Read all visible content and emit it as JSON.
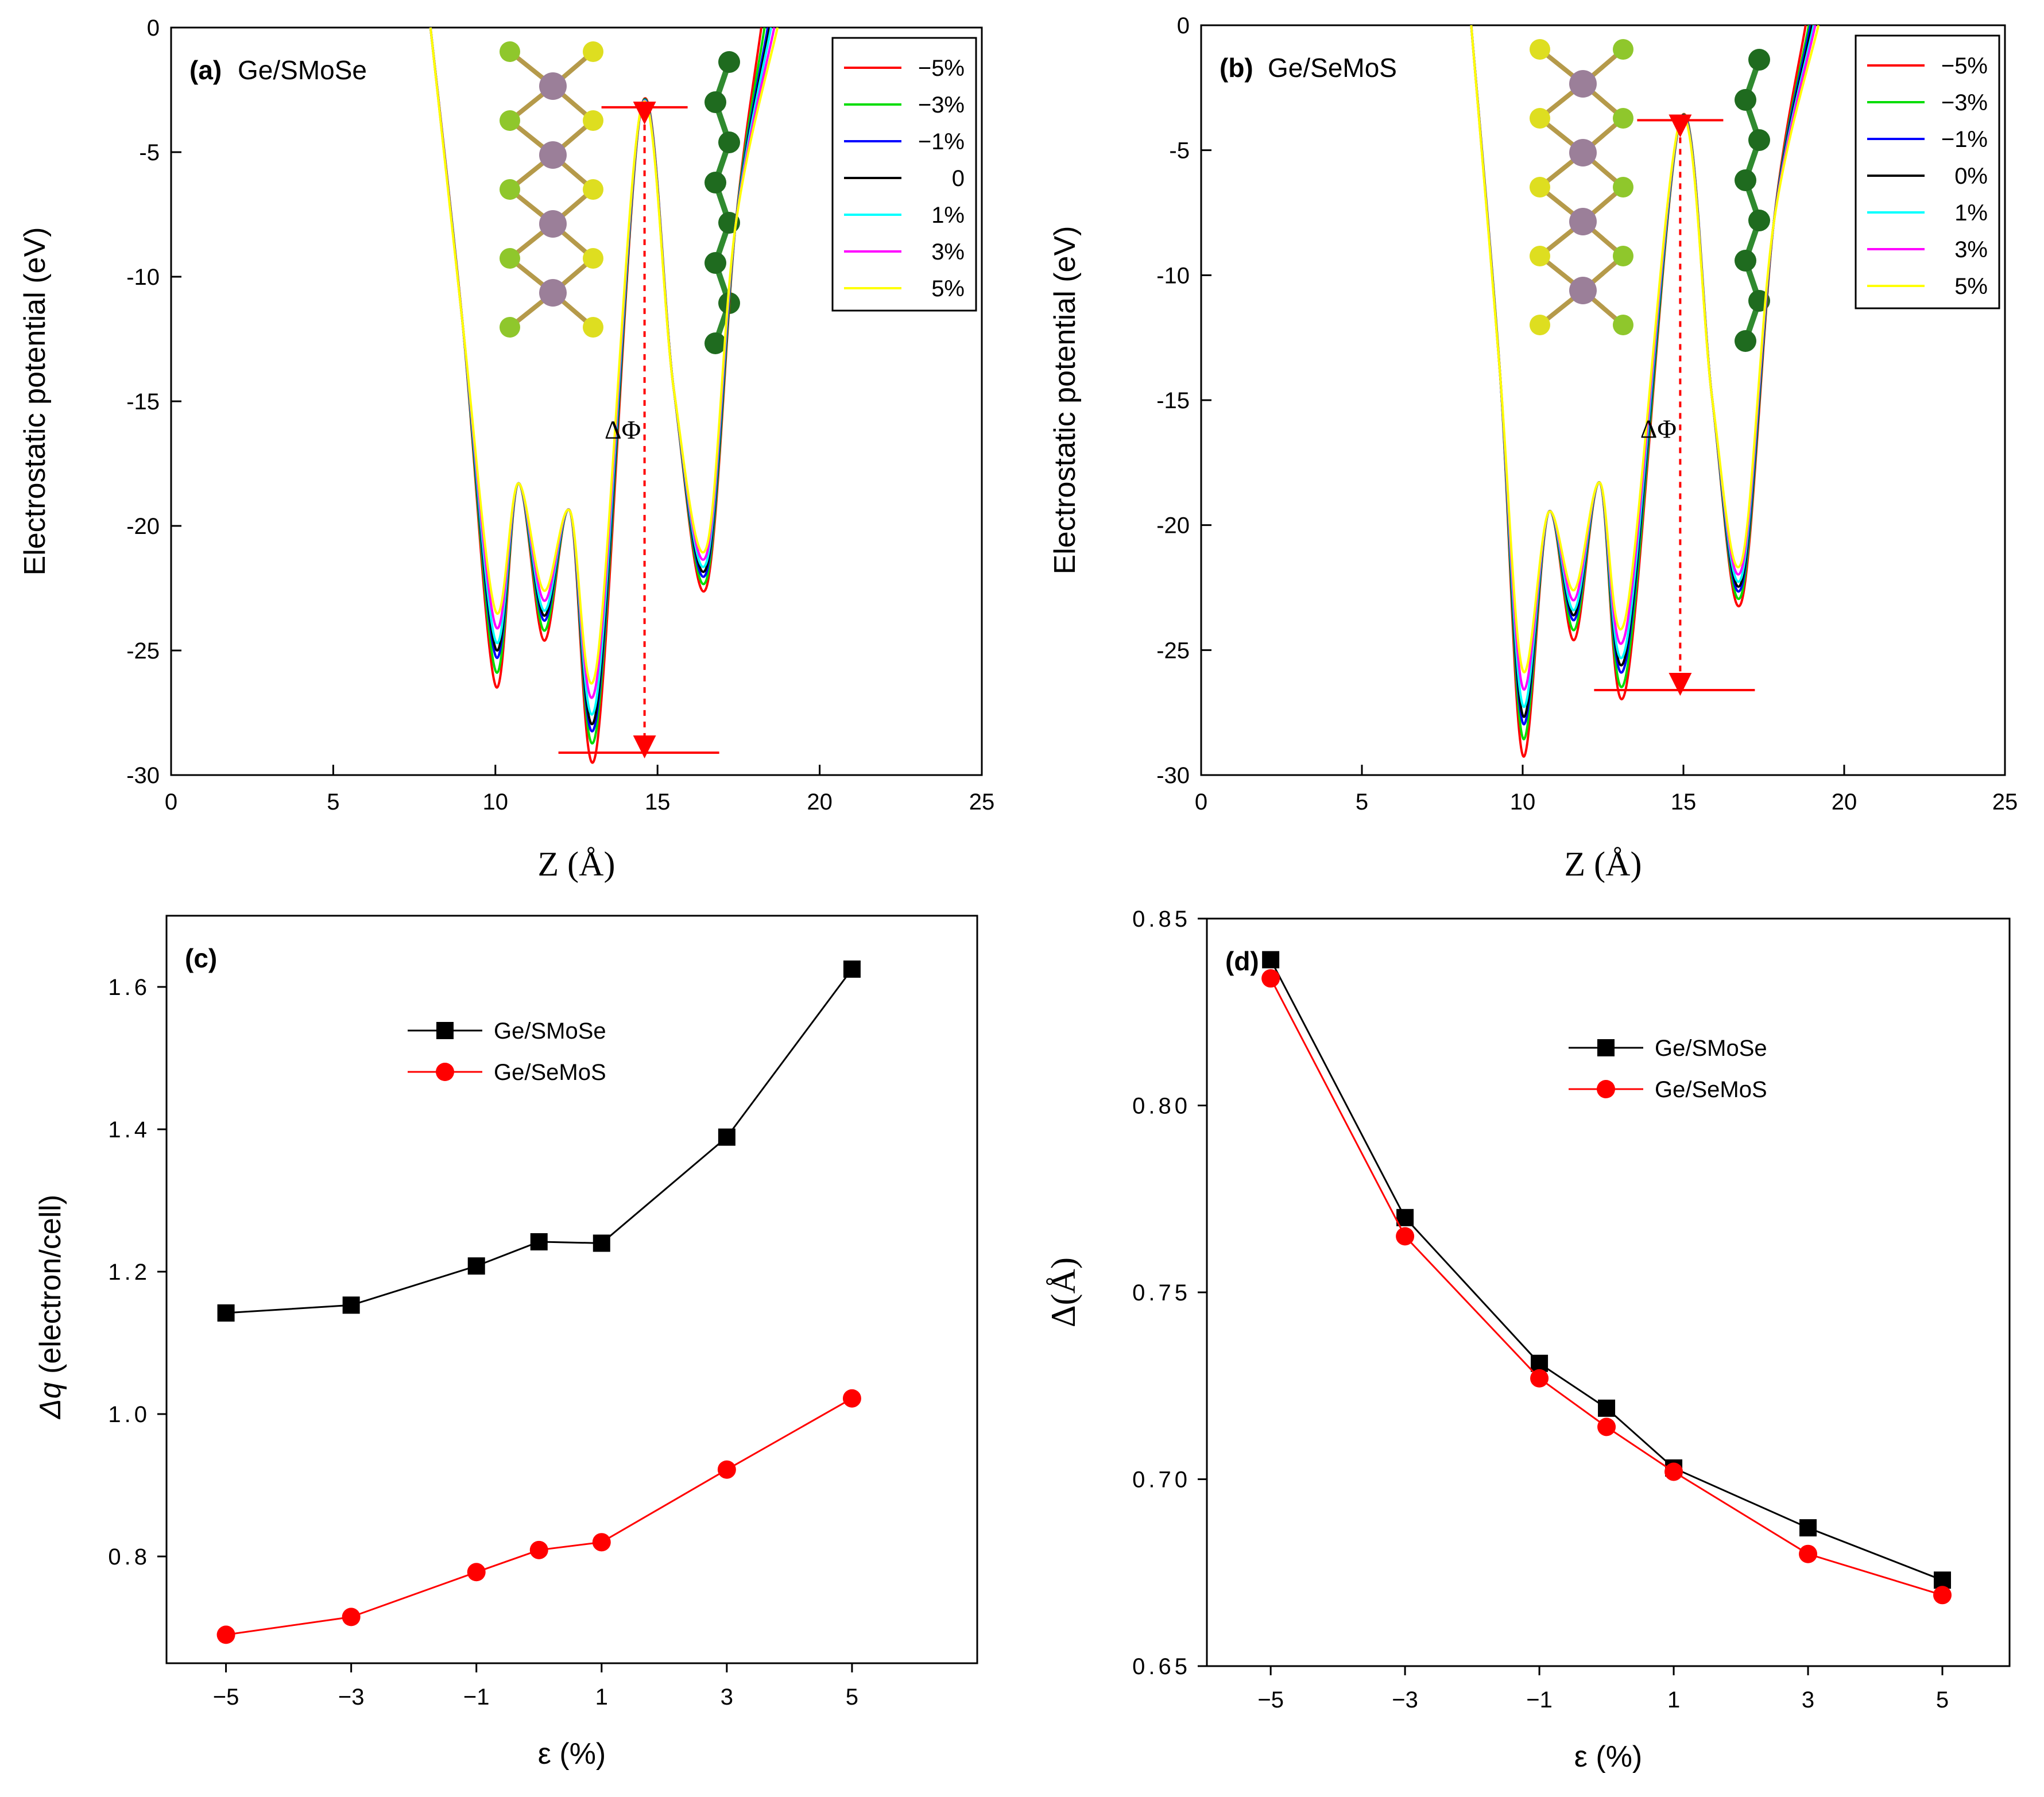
{
  "chart_data": [
    {
      "type": "line",
      "panel_label": "(a)",
      "title": "Ge/SMoSe",
      "xlabel": "Z (Å)",
      "ylabel": "Electrostatic potential (eV)",
      "xlim": [
        0,
        25
      ],
      "ylim": [
        -30,
        0
      ],
      "xticks": [
        "0",
        "5",
        "10",
        "15",
        "20",
        "25"
      ],
      "yticks": [
        "0",
        "-5",
        "-10",
        "-15",
        "-20",
        "-25",
        "-30"
      ],
      "legend_position": "top-right",
      "series": [
        {
          "name": "−5%",
          "color": "#ff0000",
          "x": [
            8.0,
            9.0,
            10.0,
            10.7,
            11.5,
            12.3,
            13.1,
            14.5,
            15.5,
            16.5,
            17.4,
            18.2
          ],
          "y": [
            0,
            -12.0,
            -26.4,
            -18.3,
            -24.6,
            -19.4,
            -29.1,
            -3.2,
            -14.5,
            -22.5,
            -8.0,
            0
          ]
        },
        {
          "name": "−3%",
          "color": "#00dd00",
          "x": [
            8.0,
            9.0,
            10.0,
            10.7,
            11.5,
            12.3,
            13.1,
            14.5,
            15.5,
            16.5,
            17.4,
            18.3
          ],
          "y": [
            0,
            -12.0,
            -25.8,
            -18.3,
            -24.2,
            -19.4,
            -28.3,
            -3.2,
            -14.5,
            -22.2,
            -8.0,
            0
          ]
        },
        {
          "name": "−1%",
          "color": "#0000ff",
          "x": [
            8.0,
            9.0,
            10.0,
            10.7,
            11.5,
            12.3,
            13.1,
            14.5,
            15.5,
            16.5,
            17.4,
            18.4
          ],
          "y": [
            0,
            -12.0,
            -25.2,
            -18.3,
            -23.8,
            -19.4,
            -27.8,
            -3.2,
            -14.5,
            -21.9,
            -8.0,
            0
          ]
        },
        {
          "name": "0",
          "color": "#000000",
          "x": [
            8.0,
            9.0,
            10.0,
            10.7,
            11.5,
            12.3,
            13.1,
            14.5,
            15.5,
            16.5,
            17.4,
            18.45
          ],
          "y": [
            0,
            -12.0,
            -24.9,
            -18.3,
            -23.6,
            -19.4,
            -27.5,
            -3.2,
            -14.5,
            -21.7,
            -8.0,
            0
          ]
        },
        {
          "name": "1%",
          "color": "#00ffff",
          "x": [
            8.0,
            9.0,
            10.0,
            10.7,
            11.5,
            12.3,
            13.1,
            14.5,
            15.5,
            16.5,
            17.4,
            18.5
          ],
          "y": [
            0,
            -12.0,
            -24.6,
            -18.3,
            -23.4,
            -19.4,
            -27.1,
            -3.2,
            -14.5,
            -21.5,
            -8.0,
            0
          ]
        },
        {
          "name": "3%",
          "color": "#ff00ff",
          "x": [
            8.0,
            9.0,
            10.0,
            10.7,
            11.5,
            12.3,
            13.1,
            14.5,
            15.5,
            16.5,
            17.4,
            18.6
          ],
          "y": [
            0,
            -12.0,
            -24.0,
            -18.3,
            -23.0,
            -19.4,
            -26.4,
            -3.2,
            -14.5,
            -21.2,
            -8.0,
            0
          ]
        },
        {
          "name": "5%",
          "color": "#ffff00",
          "x": [
            8.0,
            9.0,
            10.0,
            10.7,
            11.5,
            12.3,
            13.1,
            14.5,
            15.5,
            16.5,
            17.4,
            18.7
          ],
          "y": [
            0,
            -12.0,
            -23.4,
            -18.3,
            -22.6,
            -19.4,
            -25.8,
            -3.2,
            -14.5,
            -20.9,
            -8.0,
            0
          ]
        }
      ],
      "annotation": {
        "text": "ΔΦ",
        "x": 14.6,
        "y_top": -3.2,
        "y_bottom": -29.1
      }
    },
    {
      "type": "line",
      "panel_label": "(b)",
      "title": "Ge/SeMoS",
      "xlabel": "Z (Å)",
      "ylabel": "Electrostatic potential (eV)",
      "xlim": [
        0,
        25
      ],
      "ylim": [
        -30,
        0
      ],
      "xticks": [
        "0",
        "5",
        "10",
        "15",
        "20",
        "25"
      ],
      "yticks": [
        "0",
        "-5",
        "-10",
        "-15",
        "-20",
        "-25",
        "-30"
      ],
      "legend_position": "top-right",
      "series": [
        {
          "name": "−5%",
          "color": "#ff0000",
          "x": [
            8.4,
            9.3,
            10.0,
            10.8,
            11.6,
            12.4,
            13.2,
            14.9,
            15.9,
            16.8,
            17.8,
            18.8
          ],
          "y": [
            0,
            -14.0,
            -29.2,
            -19.5,
            -24.6,
            -18.3,
            -26.6,
            -3.8,
            -15.0,
            -23.1,
            -8.0,
            0
          ]
        },
        {
          "name": "−3%",
          "color": "#00dd00",
          "x": [
            8.4,
            9.3,
            10.0,
            10.8,
            11.6,
            12.4,
            13.2,
            14.9,
            15.9,
            16.8,
            17.8,
            18.9
          ],
          "y": [
            0,
            -14.0,
            -28.5,
            -19.5,
            -24.2,
            -18.3,
            -26.1,
            -3.8,
            -15.0,
            -22.8,
            -8.0,
            0
          ]
        },
        {
          "name": "−1%",
          "color": "#0000ff",
          "x": [
            8.4,
            9.3,
            10.0,
            10.8,
            11.6,
            12.4,
            13.2,
            14.9,
            15.9,
            16.8,
            17.8,
            18.95
          ],
          "y": [
            0,
            -14.0,
            -27.9,
            -19.5,
            -23.8,
            -18.3,
            -25.5,
            -3.8,
            -15.0,
            -22.5,
            -8.0,
            0
          ]
        },
        {
          "name": "0%",
          "color": "#000000",
          "x": [
            8.4,
            9.3,
            10.0,
            10.8,
            11.6,
            12.4,
            13.2,
            14.9,
            15.9,
            16.8,
            17.8,
            19.0
          ],
          "y": [
            0,
            -14.0,
            -27.6,
            -19.5,
            -23.6,
            -18.3,
            -25.2,
            -3.8,
            -15.0,
            -22.3,
            -8.0,
            0
          ]
        },
        {
          "name": "1%",
          "color": "#00ffff",
          "x": [
            8.4,
            9.3,
            10.0,
            10.8,
            11.6,
            12.4,
            13.2,
            14.9,
            15.9,
            16.8,
            17.8,
            19.05
          ],
          "y": [
            0,
            -14.0,
            -27.2,
            -19.5,
            -23.4,
            -18.3,
            -24.9,
            -3.8,
            -15.0,
            -22.1,
            -8.0,
            0
          ]
        },
        {
          "name": "3%",
          "color": "#ff00ff",
          "x": [
            8.4,
            9.3,
            10.0,
            10.8,
            11.6,
            12.4,
            13.2,
            14.9,
            15.9,
            16.8,
            17.8,
            19.1
          ],
          "y": [
            0,
            -14.0,
            -26.5,
            -19.5,
            -23.0,
            -18.3,
            -24.3,
            -3.8,
            -15.0,
            -21.8,
            -8.0,
            0
          ]
        },
        {
          "name": "5%",
          "color": "#ffff00",
          "x": [
            8.4,
            9.3,
            10.0,
            10.8,
            11.6,
            12.4,
            13.2,
            14.9,
            15.9,
            16.8,
            17.8,
            19.2
          ],
          "y": [
            0,
            -14.0,
            -25.8,
            -19.5,
            -22.6,
            -18.3,
            -23.7,
            -3.8,
            -15.0,
            -21.5,
            -8.0,
            0
          ]
        }
      ],
      "annotation": {
        "text": "ΔΦ",
        "x": 14.9,
        "y_top": -3.8,
        "y_bottom": -26.6
      }
    },
    {
      "type": "line",
      "panel_label": "(c)",
      "xlabel": "ε (%)",
      "ylabel_italic": "Δq",
      "ylabel_rest": " (electron/cell)",
      "xlim": [
        -6,
        7
      ],
      "ylim": [
        0.65,
        1.7
      ],
      "xticks": [
        "−5",
        "−3",
        "−1",
        "1",
        "3",
        "5"
      ],
      "xtick_values": [
        -5,
        -3,
        -1,
        1,
        3,
        5
      ],
      "yticks": [
        "0.8",
        "1.0",
        "1.2",
        "1.4",
        "1.6"
      ],
      "ytick_values": [
        0.8,
        1.0,
        1.2,
        1.4,
        1.6
      ],
      "legend_position": "upper-left",
      "x": [
        -5,
        -3,
        -1,
        0,
        1,
        3,
        5
      ],
      "series": [
        {
          "name": "Ge/SMoSe",
          "marker": "square",
          "line_color": "#000000",
          "marker_color": "#000000",
          "values": [
            1.142,
            1.153,
            1.208,
            1.242,
            1.24,
            1.389,
            1.625
          ]
        },
        {
          "name": "Ge/SeMoS",
          "marker": "circle",
          "line_color": "#ff0000",
          "marker_color": "#ff0000",
          "values": [
            0.69,
            0.715,
            0.778,
            0.809,
            0.82,
            0.922,
            1.022
          ]
        }
      ]
    },
    {
      "type": "line",
      "panel_label": "(d)",
      "xlabel": "ε (%)",
      "ylabel": "Δ(Å)",
      "xlim": [
        -6,
        6
      ],
      "ylim": [
        0.65,
        0.85
      ],
      "xticks": [
        "−5",
        "−3",
        "−1",
        "1",
        "3",
        "5"
      ],
      "xtick_values": [
        -5,
        -3,
        -1,
        1,
        3,
        5
      ],
      "yticks": [
        "0.65",
        "0.70",
        "0.75",
        "0.80",
        "0.85"
      ],
      "ytick_values": [
        0.65,
        0.7,
        0.75,
        0.8,
        0.85
      ],
      "legend_position": "upper-right",
      "x": [
        -5,
        -3,
        -1,
        0,
        1,
        3,
        5
      ],
      "series": [
        {
          "name": "Ge/SMoSe",
          "marker": "square",
          "line_color": "#000000",
          "marker_color": "#000000",
          "values": [
            0.839,
            0.77,
            0.731,
            0.719,
            0.703,
            0.687,
            0.673
          ]
        },
        {
          "name": "Ge/SeMoS",
          "marker": "circle",
          "line_color": "#ff0000",
          "marker_color": "#ff0000",
          "values": [
            0.834,
            0.765,
            0.727,
            0.714,
            0.702,
            0.68,
            0.669
          ]
        }
      ]
    }
  ]
}
